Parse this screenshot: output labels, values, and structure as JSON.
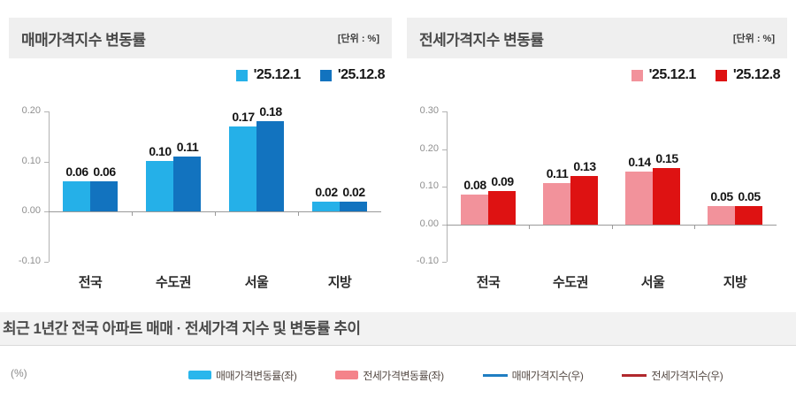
{
  "chart_data": [
    {
      "type": "bar",
      "title": "매매가격지수 변동률",
      "unit": "[단위 : %]",
      "categories": [
        "전국",
        "수도권",
        "서울",
        "지방"
      ],
      "series": [
        {
          "name": "'25.12.1",
          "values": [
            0.06,
            0.1,
            0.17,
            0.02
          ],
          "color": "#25b0e8"
        },
        {
          "name": "'25.12.8",
          "values": [
            0.06,
            0.11,
            0.18,
            0.02
          ],
          "color": "#1273bf"
        }
      ],
      "ylim": [
        -0.1,
        0.2
      ],
      "yticks": [
        0.2,
        0.1,
        0.0,
        -0.1
      ],
      "grid": false,
      "legend_position": "top-right",
      "value_labels": true
    },
    {
      "type": "bar",
      "title": "전세가격지수 변동률",
      "unit": "[단위 : %]",
      "categories": [
        "전국",
        "수도권",
        "서울",
        "지방"
      ],
      "series": [
        {
          "name": "'25.12.1",
          "values": [
            0.08,
            0.11,
            0.14,
            0.05
          ],
          "color": "#f2929b"
        },
        {
          "name": "'25.12.8",
          "values": [
            0.09,
            0.13,
            0.15,
            0.05
          ],
          "color": "#de1212"
        }
      ],
      "ylim": [
        -0.1,
        0.3
      ],
      "yticks": [
        0.3,
        0.2,
        0.1,
        0.0,
        -0.1
      ],
      "grid": false,
      "legend_position": "top-right",
      "value_labels": true
    }
  ],
  "bottom": {
    "title": "최근 1년간 전국 아파트 매매 · 전세가격 지수 및 변동률 추이",
    "axis_label": "(%)",
    "legend": [
      {
        "label": "매매가격변동률(좌)",
        "type": "bar",
        "color": "#29b6ec"
      },
      {
        "label": "전세가격변동률(좌)",
        "type": "bar",
        "color": "#f4838a"
      },
      {
        "label": "매매가격지수(우)",
        "type": "line",
        "color": "#1f7ec2"
      },
      {
        "label": "전세가격지수(우)",
        "type": "line",
        "color": "#b1282d"
      }
    ]
  }
}
